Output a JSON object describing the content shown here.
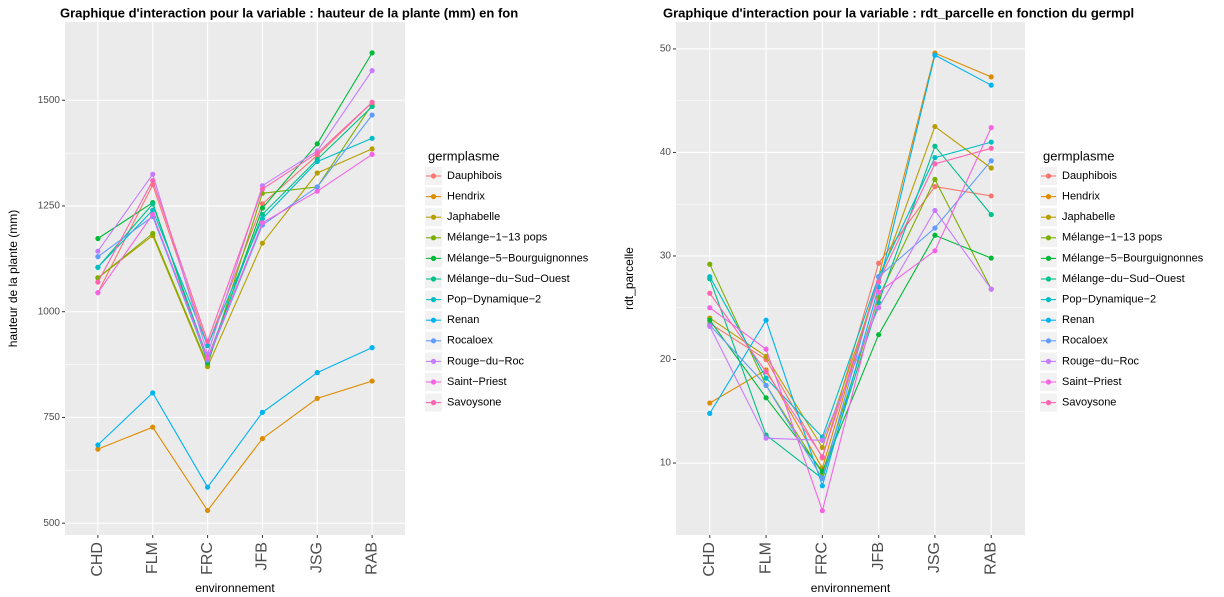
{
  "chart_data": [
    {
      "type": "line",
      "title": "Graphique d'interaction pour la variable : hauteur de la plante (mm) en fon",
      "x_label": "environnement",
      "y_label": "hauteur de la plante (mm)",
      "legend_title": "germplasme",
      "legend": "right",
      "grid": true,
      "categories": [
        "CHD",
        "FLM",
        "FRC",
        "JFB",
        "JSG",
        "RAB"
      ],
      "ylim": [
        472,
        1685
      ],
      "yticks": [
        500,
        750,
        1000,
        1250,
        1500
      ],
      "series": [
        {
          "name": "Dauphibois",
          "color": "#F8766D",
          "values": [
            1045,
            1300,
            920,
            1255,
            1370,
            1495
          ]
        },
        {
          "name": "Hendrix",
          "color": "#DE8C00",
          "values": [
            675,
            727,
            530,
            700,
            795,
            836
          ]
        },
        {
          "name": "Japhabelle",
          "color": "#B79F00",
          "values": [
            1080,
            1180,
            870,
            1162,
            1328,
            1385
          ]
        },
        {
          "name": "Mélange−1−13 pops",
          "color": "#7CAE00",
          "values": [
            1080,
            1185,
            875,
            1280,
            1295,
            1490
          ]
        },
        {
          "name": "Mélange−5−Bourguignonnes",
          "color": "#00BA38",
          "values": [
            1173,
            1258,
            880,
            1245,
            1397,
            1612
          ]
        },
        {
          "name": "Mélange−du−Sud−Ouest",
          "color": "#00C08B",
          "values": [
            1105,
            1255,
            890,
            1230,
            1360,
            1485
          ]
        },
        {
          "name": "Pop−Dynamique−2",
          "color": "#00BFC4",
          "values": [
            1105,
            1240,
            920,
            1220,
            1355,
            1410
          ]
        },
        {
          "name": "Renan",
          "color": "#00B4F0",
          "values": [
            685,
            808,
            585,
            762,
            856,
            915
          ]
        },
        {
          "name": "Rocaloex",
          "color": "#619CFF",
          "values": [
            1130,
            1225,
            885,
            1205,
            1295,
            1465
          ]
        },
        {
          "name": "Rouge−du−Roc",
          "color": "#C77CFF",
          "values": [
            1143,
            1325,
            900,
            1298,
            1380,
            1570
          ]
        },
        {
          "name": "Saint−Priest",
          "color": "#F564E3",
          "values": [
            1045,
            1230,
            890,
            1210,
            1285,
            1372
          ]
        },
        {
          "name": "Savoysone",
          "color": "#FF64B0",
          "values": [
            1070,
            1310,
            930,
            1290,
            1375,
            1495
          ]
        }
      ]
    },
    {
      "type": "line",
      "title": "Graphique d'interaction pour la variable : rdt_parcelle en fonction du germpl",
      "x_label": "environnement",
      "y_label": "rdt_parcelle",
      "legend_title": "germplasme",
      "legend": "right",
      "grid": true,
      "categories": [
        "CHD",
        "FLM",
        "FRC",
        "JFB",
        "JSG",
        "RAB"
      ],
      "ylim": [
        3.05,
        52.6
      ],
      "yticks": [
        10,
        20,
        30,
        40,
        50
      ],
      "series": [
        {
          "name": "Dauphibois",
          "color": "#F8766D",
          "values": [
            23.5,
            20.0,
            10.5,
            29.3,
            36.7,
            35.8
          ]
        },
        {
          "name": "Hendrix",
          "color": "#DE8C00",
          "values": [
            15.8,
            19.0,
            9.5,
            28.0,
            49.6,
            47.3
          ]
        },
        {
          "name": "Japhabelle",
          "color": "#B79F00",
          "values": [
            24.0,
            20.3,
            11.5,
            27.5,
            42.5,
            38.5
          ]
        },
        {
          "name": "Mélange−1−13 pops",
          "color": "#7CAE00",
          "values": [
            29.2,
            17.5,
            9.0,
            26.0,
            37.4,
            26.8
          ]
        },
        {
          "name": "Mélange−5−Bourguignonnes",
          "color": "#00BA38",
          "values": [
            23.8,
            16.3,
            9.2,
            22.4,
            32.0,
            29.8
          ]
        },
        {
          "name": "Mélange−du−Sud−Ouest",
          "color": "#00C08B",
          "values": [
            27.8,
            12.7,
            8.5,
            25.5,
            40.6,
            34.0
          ]
        },
        {
          "name": "Pop−Dynamique−2",
          "color": "#00BFC4",
          "values": [
            28.0,
            18.2,
            12.5,
            28.0,
            39.5,
            41.0
          ]
        },
        {
          "name": "Renan",
          "color": "#00B4F0",
          "values": [
            14.8,
            23.8,
            7.8,
            27.0,
            49.4,
            46.5
          ]
        },
        {
          "name": "Rocaloex",
          "color": "#619CFF",
          "values": [
            23.3,
            17.5,
            8.5,
            28.0,
            32.7,
            39.2
          ]
        },
        {
          "name": "Rouge−du−Roc",
          "color": "#C77CFF",
          "values": [
            23.2,
            12.4,
            12.2,
            25.0,
            34.4,
            26.8
          ]
        },
        {
          "name": "Saint−Priest",
          "color": "#F564E3",
          "values": [
            25.0,
            21.0,
            5.4,
            26.5,
            30.5,
            42.4
          ]
        },
        {
          "name": "Savoysone",
          "color": "#FF64B0",
          "values": [
            26.4,
            18.8,
            10.6,
            27.5,
            38.9,
            40.4
          ]
        }
      ]
    }
  ]
}
